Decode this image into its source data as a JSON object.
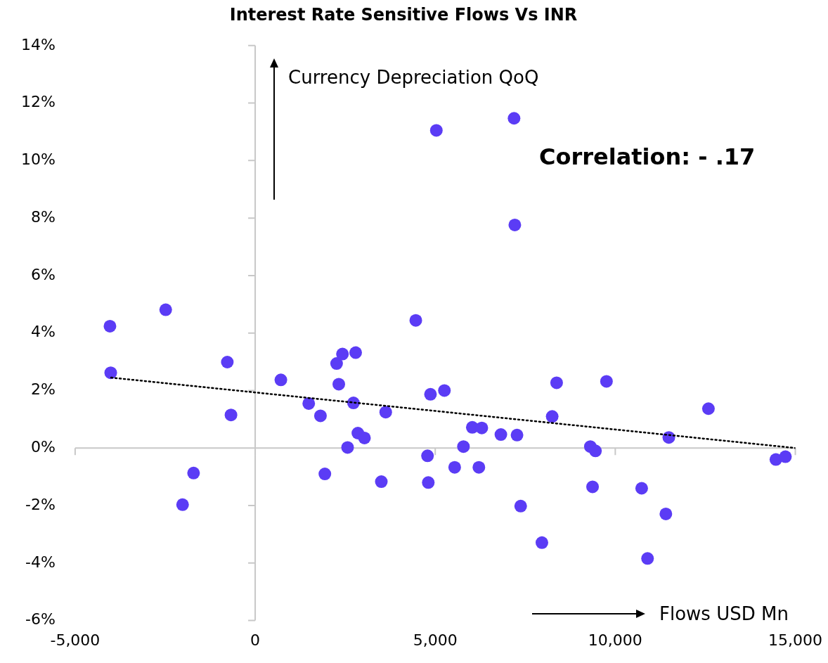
{
  "chart_data": {
    "type": "scatter",
    "title": "Interest Rate Sensitive Flows Vs INR",
    "series": [
      {
        "color": "#5b3cf5",
        "x": [
          -4033,
          -4012,
          -2485,
          -1711,
          -2016,
          -774,
          -672,
          713,
          1487,
          1813,
          1935,
          2261,
          2424,
          2322,
          2790,
          2729,
          2566,
          2851,
          3035,
          3625,
          3503,
          4460,
          5031,
          4868,
          5255,
          4786,
          4807,
          5540,
          5784,
          6029,
          6293,
          6212,
          6823,
          7271,
          7189,
          7210,
          7373,
          7963,
          8248,
          8371,
          9756,
          9308,
          9450,
          9369,
          10733,
          10896,
          11405,
          11487,
          12587,
          14460,
          14725
        ],
        "values": [
          4.24,
          2.62,
          4.81,
          -0.87,
          -1.97,
          2.99,
          1.15,
          2.37,
          1.55,
          1.12,
          -0.9,
          2.94,
          3.27,
          2.22,
          3.32,
          1.57,
          0.02,
          0.52,
          0.35,
          1.25,
          -1.17,
          4.44,
          11.05,
          1.87,
          2.0,
          -0.27,
          -1.2,
          -0.67,
          0.05,
          0.72,
          0.7,
          -0.67,
          0.47,
          0.45,
          11.47,
          7.76,
          -2.02,
          -3.29,
          1.1,
          2.27,
          2.32,
          0.05,
          -0.1,
          -1.35,
          -1.4,
          -3.84,
          -2.29,
          0.37,
          1.37,
          -0.4,
          -0.3
        ]
      },
      {
        "type": "line",
        "color": "#000000",
        "line_style": "dotted",
        "marker": "none",
        "x": [
          -4000,
          15000
        ],
        "values": [
          2.45,
          0.0
        ]
      }
    ],
    "xlim": [
      -5000,
      15000
    ],
    "xticks": [
      {
        "value": -5000,
        "label": "-5,000"
      },
      {
        "value": 0,
        "label": "0"
      },
      {
        "value": 5000,
        "label": "5,000"
      },
      {
        "value": 10000,
        "label": "10,000"
      },
      {
        "value": 15000,
        "label": "15,000"
      }
    ],
    "ylim": [
      -6,
      14
    ],
    "yticks": [
      {
        "value": -6,
        "label": "-6%"
      },
      {
        "value": -4,
        "label": "-4%"
      },
      {
        "value": -2,
        "label": "-2%"
      },
      {
        "value": 0,
        "label": "0%"
      },
      {
        "value": 2,
        "label": "2%"
      },
      {
        "value": 4,
        "label": "4%"
      },
      {
        "value": 6,
        "label": "6%"
      },
      {
        "value": 8,
        "label": "8%"
      },
      {
        "value": 10,
        "label": "10%"
      },
      {
        "value": 12,
        "label": "12%"
      },
      {
        "value": 14,
        "label": "14%"
      }
    ],
    "legend": false,
    "marker": "circle",
    "annotations": [
      "Currency Depreciation QoQ",
      "Flows USD Mn",
      "Correlation: - .17"
    ]
  }
}
